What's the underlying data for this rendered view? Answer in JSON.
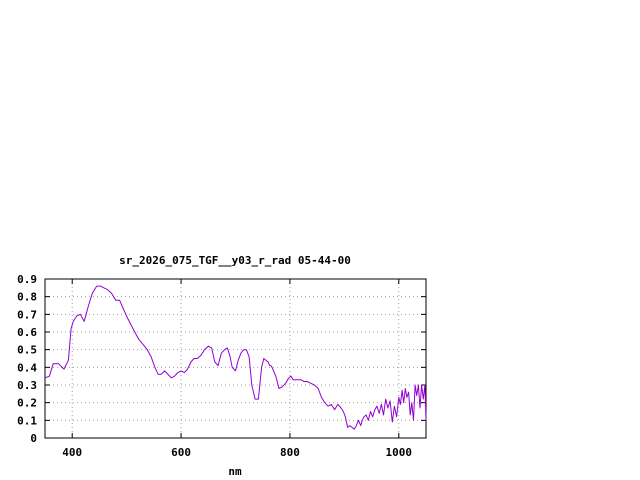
{
  "chart_data": {
    "type": "line",
    "title": "sr_2026_075_TGF__y03_r_rad 05-44-00",
    "xlabel": "nm",
    "ylabel": "",
    "xlim": [
      350,
      1050
    ],
    "ylim": [
      0,
      0.9
    ],
    "xticks": [
      400,
      600,
      800,
      1000
    ],
    "xtick_labels": [
      "400",
      "600",
      "800",
      "1000"
    ],
    "yticks": [
      0,
      0.1,
      0.2,
      0.3,
      0.4,
      0.5,
      0.6,
      0.7,
      0.8,
      0.9
    ],
    "ytick_labels": [
      "0",
      "0.1",
      "0.2",
      "0.3",
      "0.4",
      "0.5",
      "0.6",
      "0.7",
      "0.8",
      "0.9"
    ],
    "grid": true,
    "series": [
      {
        "color": "#9400d3",
        "x": [
          350,
          358,
          365,
          375,
          385,
          393,
          398,
          402,
          408,
          415,
          422,
          430,
          437,
          445,
          452,
          458,
          465,
          472,
          480,
          487,
          494,
          500,
          508,
          515,
          522,
          530,
          538,
          545,
          552,
          558,
          563,
          570,
          576,
          582,
          588,
          594,
          600,
          606,
          612,
          618,
          624,
          630,
          637,
          643,
          650,
          656,
          662,
          668,
          674,
          680,
          685,
          690,
          694,
          700,
          705,
          710,
          715,
          720,
          725,
          730,
          736,
          742,
          748,
          752,
          756,
          760,
          763,
          765,
          767,
          770,
          774,
          780,
          786,
          792,
          798,
          802,
          806,
          810,
          815,
          820,
          826,
          832,
          838,
          845,
          852,
          858,
          864,
          870,
          876,
          882,
          888,
          894,
          898,
          902,
          906,
          910,
          914,
          918,
          922,
          926,
          930,
          933,
          936,
          940,
          944,
          948,
          952,
          956,
          960,
          964,
          968,
          972,
          976,
          980,
          984,
          988,
          992,
          996,
          1000,
          1003,
          1006,
          1009,
          1012,
          1015,
          1018,
          1021,
          1024,
          1027,
          1030,
          1033,
          1036,
          1039,
          1042,
          1045,
          1048,
          1050
        ],
        "y": [
          0.34,
          0.35,
          0.42,
          0.42,
          0.39,
          0.44,
          0.62,
          0.66,
          0.69,
          0.7,
          0.66,
          0.75,
          0.82,
          0.86,
          0.86,
          0.85,
          0.84,
          0.82,
          0.78,
          0.78,
          0.73,
          0.69,
          0.64,
          0.6,
          0.56,
          0.53,
          0.5,
          0.46,
          0.4,
          0.36,
          0.36,
          0.38,
          0.36,
          0.34,
          0.35,
          0.37,
          0.38,
          0.37,
          0.39,
          0.43,
          0.45,
          0.45,
          0.47,
          0.5,
          0.52,
          0.51,
          0.43,
          0.41,
          0.48,
          0.5,
          0.51,
          0.46,
          0.4,
          0.38,
          0.44,
          0.48,
          0.5,
          0.5,
          0.46,
          0.3,
          0.22,
          0.22,
          0.4,
          0.45,
          0.44,
          0.43,
          0.41,
          0.41,
          0.4,
          0.38,
          0.35,
          0.28,
          0.29,
          0.31,
          0.34,
          0.35,
          0.33,
          0.33,
          0.33,
          0.33,
          0.32,
          0.32,
          0.31,
          0.3,
          0.28,
          0.23,
          0.2,
          0.18,
          0.19,
          0.16,
          0.19,
          0.17,
          0.15,
          0.12,
          0.06,
          0.07,
          0.06,
          0.05,
          0.07,
          0.1,
          0.07,
          0.1,
          0.12,
          0.13,
          0.1,
          0.15,
          0.12,
          0.16,
          0.18,
          0.14,
          0.19,
          0.13,
          0.22,
          0.17,
          0.21,
          0.09,
          0.18,
          0.12,
          0.23,
          0.19,
          0.27,
          0.2,
          0.28,
          0.23,
          0.26,
          0.13,
          0.2,
          0.1,
          0.3,
          0.24,
          0.3,
          0.17,
          0.3,
          0.22,
          0.3,
          0.1
        ]
      }
    ]
  }
}
